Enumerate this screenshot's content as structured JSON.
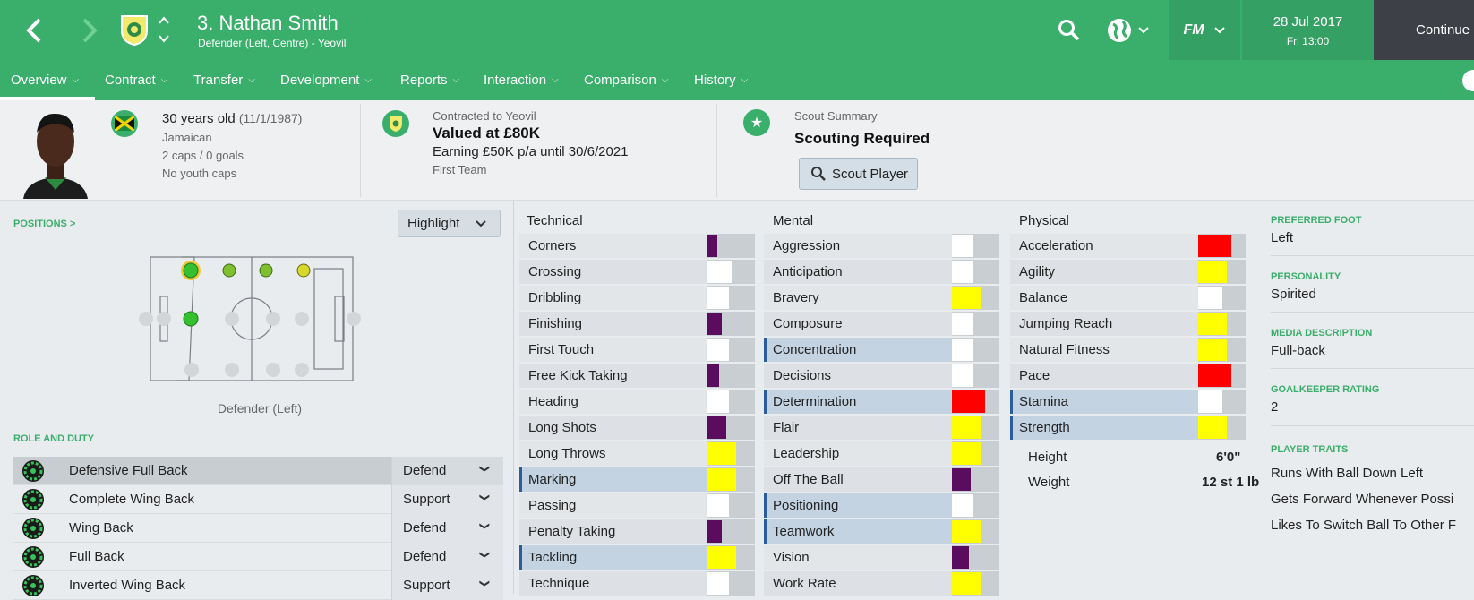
{
  "header": {
    "player_name": "3. Nathan Smith",
    "player_subtitle": "Defender (Left, Centre) - Yeovil",
    "fm_label": "FM",
    "date": "28 Jul 2017",
    "time": "Fri 13:00",
    "continue_label": "Continue",
    "accent_color": "#3aae6b"
  },
  "tabs": [
    {
      "label": "Overview",
      "active": true
    },
    {
      "label": "Contract"
    },
    {
      "label": "Transfer"
    },
    {
      "label": "Development"
    },
    {
      "label": "Reports"
    },
    {
      "label": "Interaction"
    },
    {
      "label": "Comparison"
    },
    {
      "label": "History"
    }
  ],
  "bio": {
    "age": "30 years old",
    "dob": "(11/1/1987)",
    "nationality": "Jamaican",
    "caps": "2 caps / 0 goals",
    "youth_caps": "No youth caps"
  },
  "contract": {
    "contracted_to": "Contracted to Yeovil",
    "value": "Valued at £80K",
    "earning": "Earning £50K p/a until 30/6/2021",
    "squad": "First Team"
  },
  "scout": {
    "label": "Scout Summary",
    "status": "Scouting Required",
    "button": "Scout Player"
  },
  "positions": {
    "label": "POSITIONS >",
    "highlight": "Highlight",
    "caption": "Defender (Left)"
  },
  "role_and_duty": {
    "label": "ROLE AND DUTY",
    "rows": [
      {
        "role": "Defensive Full Back",
        "duty": "Defend",
        "selected": true
      },
      {
        "role": "Complete Wing Back",
        "duty": "Support"
      },
      {
        "role": "Wing Back",
        "duty": "Defend"
      },
      {
        "role": "Full Back",
        "duty": "Defend"
      },
      {
        "role": "Inverted Wing Back",
        "duty": "Support"
      }
    ]
  },
  "attributes": {
    "technical_label": "Technical",
    "mental_label": "Mental",
    "physical_label": "Physical",
    "technical": [
      {
        "name": "Corners",
        "level": 0.2,
        "color": "#5a0d5e"
      },
      {
        "name": "Crossing",
        "level": 0.5,
        "color": "#ffffff"
      },
      {
        "name": "Dribbling",
        "level": 0.45,
        "color": "#ffffff"
      },
      {
        "name": "Finishing",
        "level": 0.3,
        "color": "#5a0d5e"
      },
      {
        "name": "First Touch",
        "level": 0.45,
        "color": "#ffffff"
      },
      {
        "name": "Free Kick Taking",
        "level": 0.25,
        "color": "#5a0d5e"
      },
      {
        "name": "Heading",
        "level": 0.45,
        "color": "#ffffff"
      },
      {
        "name": "Long Shots",
        "level": 0.4,
        "color": "#5a0d5e"
      },
      {
        "name": "Long Throws",
        "level": 0.6,
        "color": "#ffff00"
      },
      {
        "name": "Marking",
        "level": 0.6,
        "color": "#ffff00",
        "highlight": true
      },
      {
        "name": "Passing",
        "level": 0.45,
        "color": "#ffffff"
      },
      {
        "name": "Penalty Taking",
        "level": 0.3,
        "color": "#5a0d5e"
      },
      {
        "name": "Tackling",
        "level": 0.6,
        "color": "#ffff00",
        "highlight": true
      },
      {
        "name": "Technique",
        "level": 0.45,
        "color": "#ffffff"
      }
    ],
    "mental": [
      {
        "name": "Aggression",
        "level": 0.45,
        "color": "#ffffff"
      },
      {
        "name": "Anticipation",
        "level": 0.45,
        "color": "#ffffff"
      },
      {
        "name": "Bravery",
        "level": 0.6,
        "color": "#ffff00"
      },
      {
        "name": "Composure",
        "level": 0.45,
        "color": "#ffffff"
      },
      {
        "name": "Concentration",
        "level": 0.45,
        "color": "#ffffff",
        "highlight": true
      },
      {
        "name": "Decisions",
        "level": 0.45,
        "color": "#ffffff"
      },
      {
        "name": "Determination",
        "level": 0.7,
        "color": "#ff0000",
        "highlight": true
      },
      {
        "name": "Flair",
        "level": 0.6,
        "color": "#ffff00"
      },
      {
        "name": "Leadership",
        "level": 0.6,
        "color": "#ffff00"
      },
      {
        "name": "Off The Ball",
        "level": 0.4,
        "color": "#5a0d5e"
      },
      {
        "name": "Positioning",
        "level": 0.45,
        "color": "#ffffff",
        "highlight": true
      },
      {
        "name": "Teamwork",
        "level": 0.6,
        "color": "#ffff00",
        "highlight": true
      },
      {
        "name": "Vision",
        "level": 0.35,
        "color": "#5a0d5e"
      },
      {
        "name": "Work Rate",
        "level": 0.6,
        "color": "#ffff00"
      }
    ],
    "physical": [
      {
        "name": "Acceleration",
        "level": 0.7,
        "color": "#ff0000"
      },
      {
        "name": "Agility",
        "level": 0.6,
        "color": "#ffff00"
      },
      {
        "name": "Balance",
        "level": 0.5,
        "color": "#ffffff"
      },
      {
        "name": "Jumping Reach",
        "level": 0.6,
        "color": "#ffff00"
      },
      {
        "name": "Natural Fitness",
        "level": 0.6,
        "color": "#ffff00"
      },
      {
        "name": "Pace",
        "level": 0.7,
        "color": "#ff0000"
      },
      {
        "name": "Stamina",
        "level": 0.5,
        "color": "#ffffff",
        "highlight": true
      },
      {
        "name": "Strength",
        "level": 0.6,
        "color": "#ffff00",
        "highlight": true
      }
    ],
    "height_label": "Height",
    "height_value": "6'0\"",
    "weight_label": "Weight",
    "weight_value": "12 st 1 lb"
  },
  "profile": {
    "preferred_foot_label": "PREFERRED FOOT",
    "preferred_foot": "Left",
    "personality_label": "PERSONALITY",
    "personality": "Spirited",
    "media_label": "MEDIA DESCRIPTION",
    "media": "Full-back",
    "gk_label": "GOALKEEPER RATING",
    "gk": "2",
    "traits_label": "PLAYER TRAITS",
    "traits": [
      "Runs With Ball Down Left",
      "Gets Forward Whenever Possi",
      "Likes To Switch Ball To Other F"
    ]
  }
}
